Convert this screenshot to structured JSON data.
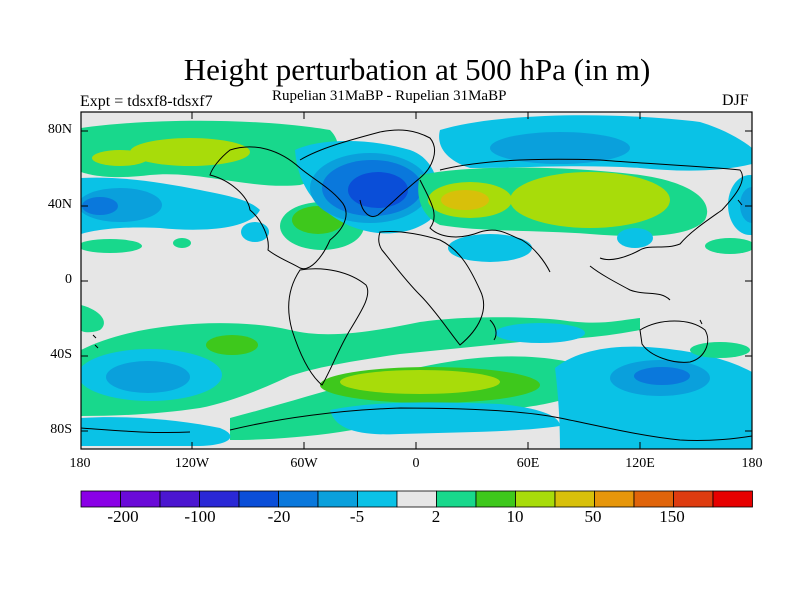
{
  "header": {
    "title": "Height perturbation at 500 hPa (in m)",
    "subtitle": "Rupelian  31MaBP - Rupelian  31MaBP",
    "experiment": "Expt = tdsxf8-tdsxf7",
    "season": "DJF"
  },
  "map": {
    "ocean_background": "#e6e6e6",
    "coastline_color": "#000000",
    "lat_labels": [
      "80N",
      "40N",
      "0",
      "40S",
      "80S"
    ],
    "lon_labels": [
      "180",
      "120W",
      "60W",
      "0",
      "60E",
      "120E",
      "180"
    ]
  },
  "colorbar": {
    "colors": [
      "#8a00e6",
      "#6a0ad8",
      "#4b16d0",
      "#2a28d6",
      "#0a4ed8",
      "#0a78dc",
      "#0aa0dc",
      "#0ac2e6",
      "#e6e6e6",
      "#18d88c",
      "#3ec81c",
      "#a8dc0a",
      "#d8c00a",
      "#e6960a",
      "#e0640a",
      "#de3c10",
      "#e60000"
    ],
    "labels": [
      "-200",
      "-100",
      "-20",
      "-5",
      "2",
      "10",
      "50",
      "150"
    ]
  }
}
